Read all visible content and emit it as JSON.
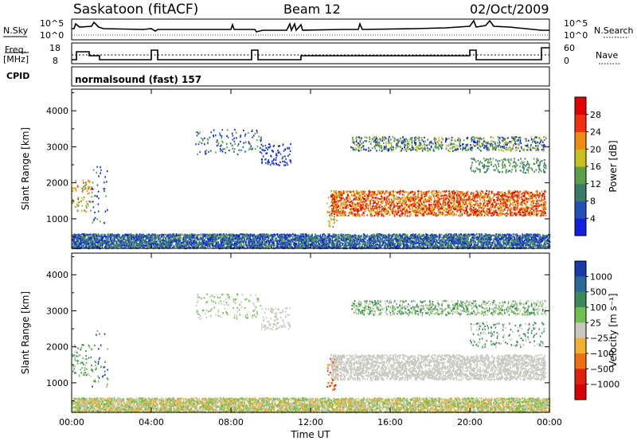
{
  "header": {
    "station": "Saskatoon (fitACF)",
    "beam": "Beam 12",
    "date": "02/Oct/2009"
  },
  "top_panels": {
    "nsky_label": "N.Sky",
    "nsky_ticks": [
      "10^5",
      "10^0"
    ],
    "nsearch_label": "N.Search",
    "nsearch_ticks": [
      "10^5",
      "10^0"
    ],
    "freq_label_1": "Freq.",
    "freq_label_2": "[MHz]",
    "freq_ticks": [
      "18",
      "8"
    ],
    "nave_label": "Nave",
    "nave_ticks": [
      "60",
      "0"
    ],
    "cpid_label": "CPID",
    "cpid_text": "normalsound (fast) 157"
  },
  "chart_data": [
    {
      "type": "heatmap",
      "name": "power",
      "ylabel": "Slant Range [km]",
      "xlabel": "Time UT",
      "x_ticks": [
        "00:00",
        "04:00",
        "08:00",
        "12:00",
        "16:00",
        "20:00",
        "00:00"
      ],
      "y_ticks": [
        1000,
        2000,
        3000,
        4000
      ],
      "ylim": [
        180,
        4600
      ],
      "xlim_hours": [
        0,
        24
      ],
      "colorbar_label": "Power [dB]",
      "colorbar_ticks": [
        4,
        8,
        12,
        16,
        20,
        24,
        28
      ],
      "colorbar_colors": [
        "#1020e0",
        "#2050b8",
        "#3a7a6a",
        "#5aa048",
        "#c8c020",
        "#f08a10",
        "#f03010",
        "#e00000"
      ]
    },
    {
      "type": "heatmap",
      "name": "velocity",
      "ylabel": "Slant Range [km]",
      "xlabel": "Time UT",
      "x_ticks": [
        "00:00",
        "04:00",
        "08:00",
        "12:00",
        "16:00",
        "20:00",
        "00:00"
      ],
      "y_ticks": [
        1000,
        2000,
        3000,
        4000
      ],
      "ylim": [
        180,
        4600
      ],
      "xlim_hours": [
        0,
        24
      ],
      "colorbar_label": "Velocity [m s⁻¹]",
      "colorbar_ticks": [
        "1000",
        "500",
        "100",
        "25",
        "−25",
        "−100",
        "−500",
        "−1000"
      ],
      "colorbar_colors": [
        "#1a3aa8",
        "#2a6a9a",
        "#3a8a5a",
        "#70c050",
        "#c8c8c0",
        "#f0b030",
        "#f07010",
        "#e02010",
        "#d80000"
      ]
    }
  ],
  "x_axis_title": "Time UT"
}
